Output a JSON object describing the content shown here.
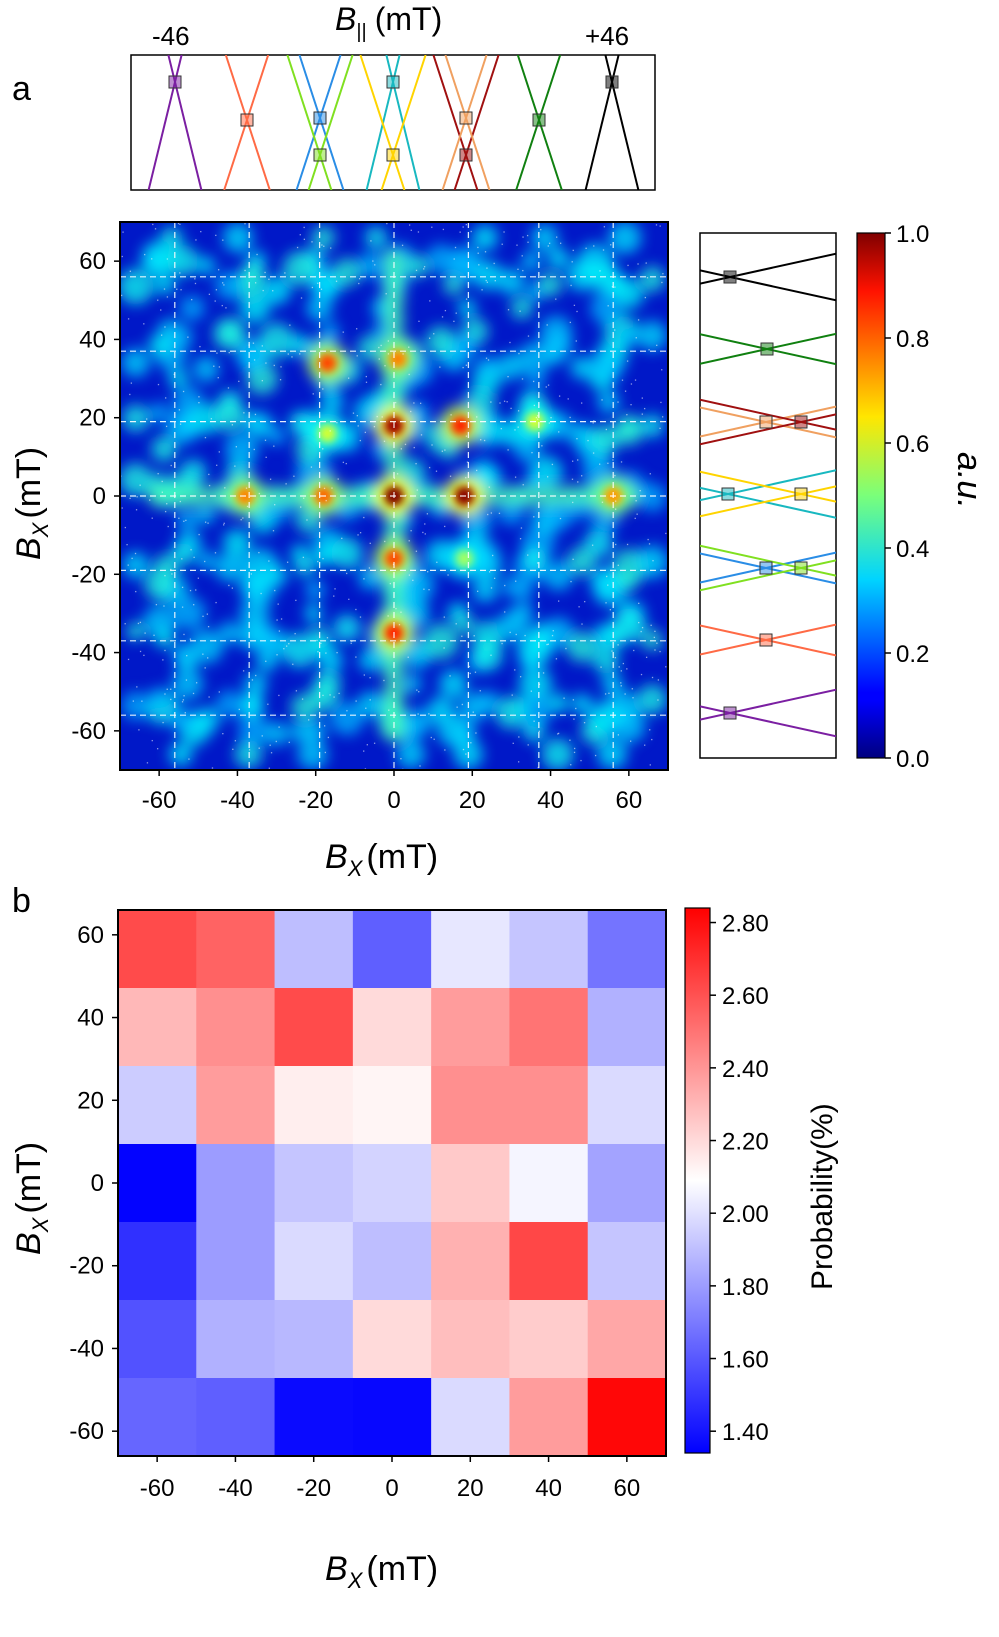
{
  "panel_a": {
    "letter": "a",
    "top_axis": {
      "symbol": "B",
      "subscript": "||",
      "unit": "(mT)",
      "left_label": "-46",
      "right_label": "+46"
    },
    "heatmap": {
      "xticks": [
        "-60",
        "-40",
        "-20",
        "0",
        "20",
        "40",
        "60"
      ],
      "yticks": [
        "60",
        "40",
        "20",
        "0",
        "-20",
        "-40",
        "-60"
      ],
      "xlabel": {
        "symbol": "B",
        "subscript": "X",
        "unit": "(mT)"
      },
      "ylabel": {
        "symbol": "B",
        "subscript": "X",
        "unit": "(mT)"
      }
    },
    "colorbar": {
      "ticks": [
        "1.0",
        "0.8",
        "0.6",
        "0.4",
        "0.2",
        "0.0"
      ],
      "label": "a.u."
    }
  },
  "panel_b": {
    "letter": "b",
    "xticks": [
      "-60",
      "-40",
      "-20",
      "0",
      "20",
      "40",
      "60"
    ],
    "yticks": [
      "60",
      "40",
      "20",
      "0",
      "-20",
      "-40",
      "-60"
    ],
    "xlabel": {
      "symbol": "B",
      "subscript": "X",
      "unit": "(mT)"
    },
    "ylabel": {
      "symbol": "B",
      "subscript": "X",
      "unit": "(mT)"
    },
    "colorbar": {
      "ticks": [
        "2.80",
        "2.60",
        "2.40",
        "2.20",
        "2.00",
        "1.80",
        "1.60",
        "1.40"
      ],
      "label": "Probability(%)"
    }
  },
  "chart_data": [
    {
      "type": "heatmap",
      "title": "",
      "xlabel": "B_X (mT)",
      "ylabel": "B_X (mT)",
      "xlim": [
        -70,
        70
      ],
      "ylim": [
        -70,
        70
      ],
      "grid_positions": [
        -56,
        -37,
        -19,
        0,
        19,
        37,
        56
      ],
      "colorbar": {
        "label": "a.u.",
        "range": [
          0,
          1
        ],
        "colormap": "jet"
      },
      "peaks": [
        {
          "x": 0,
          "y": 0,
          "value": 1.0
        },
        {
          "x": 18,
          "y": 0,
          "value": 0.98
        },
        {
          "x": 0,
          "y": 18,
          "value": 0.95
        },
        {
          "x": 17,
          "y": 18,
          "value": 0.82
        },
        {
          "x": -18,
          "y": 0,
          "value": 0.75
        },
        {
          "x": -38,
          "y": 0,
          "value": 0.72
        },
        {
          "x": 56,
          "y": 0,
          "value": 0.7
        },
        {
          "x": -17,
          "y": 34,
          "value": 0.78
        },
        {
          "x": 1,
          "y": 35,
          "value": 0.72
        },
        {
          "x": 0,
          "y": -16,
          "value": 0.78
        },
        {
          "x": 0,
          "y": -35,
          "value": 0.82
        },
        {
          "x": -17,
          "y": 16,
          "value": 0.55
        },
        {
          "x": 36,
          "y": 19,
          "value": 0.55
        },
        {
          "x": 18,
          "y": -16,
          "value": 0.5
        }
      ]
    },
    {
      "type": "heatmap",
      "title": "",
      "xlabel": "B_X (mT)",
      "ylabel": "B_X (mT)",
      "x": [
        -56,
        -37,
        -19,
        0,
        19,
        37,
        56
      ],
      "y": [
        56,
        37,
        19,
        0,
        -19,
        -37,
        -56
      ],
      "values": [
        [
          2.62,
          2.55,
          1.9,
          1.62,
          2.02,
          1.92,
          1.68
        ],
        [
          2.3,
          2.42,
          2.62,
          2.2,
          2.38,
          2.5,
          1.86
        ],
        [
          1.94,
          2.38,
          2.14,
          2.12,
          2.42,
          2.42,
          1.98
        ],
        [
          1.35,
          1.8,
          1.92,
          1.96,
          2.25,
          2.06,
          1.82
        ],
        [
          1.48,
          1.8,
          1.98,
          1.9,
          2.32,
          2.63,
          1.92
        ],
        [
          1.58,
          1.86,
          1.88,
          2.2,
          2.28,
          2.24,
          2.35
        ],
        [
          1.64,
          1.62,
          1.37,
          1.36,
          1.98,
          2.38,
          2.82
        ]
      ],
      "colorbar": {
        "label": "Probability(%)",
        "range": [
          1.34,
          2.84
        ],
        "colormap": "bwr"
      }
    }
  ],
  "colors": {
    "bands": [
      "#7b1fa2",
      "#ff6a45",
      "#2a8de6",
      "#80e020",
      "#18b8c0",
      "#ffd400",
      "#a01010",
      "#f0a060",
      "#108010",
      "#000000"
    ]
  }
}
